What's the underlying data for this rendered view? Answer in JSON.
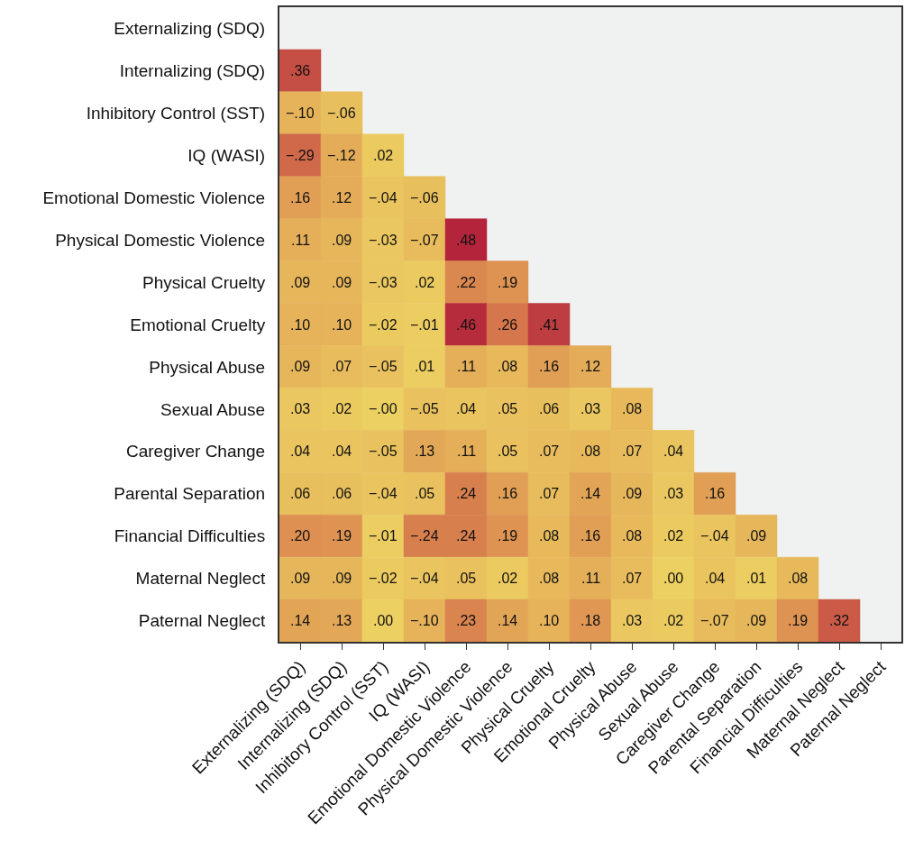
{
  "chart_data": {
    "type": "heatmap",
    "categories": [
      "Externalizing (SDQ)",
      "Internalizing (SDQ)",
      "Inhibitory Control (SST)",
      "IQ (WASI)",
      "Emotional Domestic Violence",
      "Physical Domestic Violence",
      "Physical Cruelty",
      "Emotional Cruelty",
      "Physical Abuse",
      "Sexual Abuse",
      "Caregiver Change",
      "Parental Separation",
      "Financial Difficulties",
      "Maternal Neglect",
      "Paternal Neglect"
    ],
    "y_categories": [
      "Externalizing (SDQ)",
      "Internalizing (SDQ)",
      "Inhibitory Control (SST)",
      "IQ (WASI)",
      "Emotional Domestic Violence",
      "Physical Domestic Violence",
      "Physical Cruelty",
      "Emotional Cruelty",
      "Physical Abuse",
      "Sexual Abuse",
      "Caregiver Change",
      "Parental Separation",
      "Financial Difficulties",
      "Maternal Neglect",
      "Paternal Neglect"
    ],
    "cells": [
      [
        null,
        null,
        null,
        null,
        null,
        null,
        null,
        null,
        null,
        null,
        null,
        null,
        null,
        null,
        null
      ],
      [
        0.36,
        null,
        null,
        null,
        null,
        null,
        null,
        null,
        null,
        null,
        null,
        null,
        null,
        null,
        null
      ],
      [
        -0.1,
        -0.06,
        null,
        null,
        null,
        null,
        null,
        null,
        null,
        null,
        null,
        null,
        null,
        null,
        null
      ],
      [
        -0.29,
        -0.12,
        0.02,
        null,
        null,
        null,
        null,
        null,
        null,
        null,
        null,
        null,
        null,
        null,
        null
      ],
      [
        0.16,
        0.12,
        -0.04,
        -0.06,
        null,
        null,
        null,
        null,
        null,
        null,
        null,
        null,
        null,
        null,
        null
      ],
      [
        0.11,
        0.09,
        -0.03,
        -0.07,
        0.48,
        null,
        null,
        null,
        null,
        null,
        null,
        null,
        null,
        null,
        null
      ],
      [
        0.09,
        0.09,
        -0.03,
        0.02,
        0.22,
        0.19,
        null,
        null,
        null,
        null,
        null,
        null,
        null,
        null,
        null
      ],
      [
        0.1,
        0.1,
        -0.02,
        -0.01,
        0.46,
        0.26,
        0.41,
        null,
        null,
        null,
        null,
        null,
        null,
        null,
        null
      ],
      [
        0.09,
        0.07,
        -0.05,
        0.01,
        0.11,
        0.08,
        0.16,
        0.12,
        null,
        null,
        null,
        null,
        null,
        null,
        null
      ],
      [
        0.03,
        0.02,
        0,
        -0.05,
        0.04,
        0.05,
        0.06,
        0.03,
        0.08,
        null,
        null,
        null,
        null,
        null,
        null
      ],
      [
        0.04,
        0.04,
        -0.05,
        0.13,
        0.11,
        0.05,
        0.07,
        0.08,
        0.07,
        0.04,
        null,
        null,
        null,
        null,
        null
      ],
      [
        0.06,
        0.06,
        -0.04,
        0.05,
        0.24,
        0.16,
        0.07,
        0.14,
        0.09,
        0.03,
        0.16,
        null,
        null,
        null,
        null
      ],
      [
        0.2,
        0.19,
        -0.01,
        -0.24,
        0.24,
        0.19,
        0.08,
        0.16,
        0.08,
        0.02,
        -0.04,
        0.09,
        null,
        null,
        null
      ],
      [
        0.09,
        0.09,
        -0.02,
        -0.04,
        0.05,
        0.02,
        0.08,
        0.11,
        0.07,
        0,
        0.04,
        0.01,
        0.08,
        null,
        null
      ],
      [
        0.14,
        0.13,
        0,
        -0.1,
        0.23,
        0.14,
        0.1,
        0.18,
        0.03,
        0.02,
        -0.07,
        0.09,
        0.19,
        0.32,
        null
      ]
    ],
    "cell_labels": [
      [
        null,
        null,
        null,
        null,
        null,
        null,
        null,
        null,
        null,
        null,
        null,
        null,
        null,
        null,
        null
      ],
      [
        ".36",
        null,
        null,
        null,
        null,
        null,
        null,
        null,
        null,
        null,
        null,
        null,
        null,
        null,
        null
      ],
      [
        "−.10",
        "−.06",
        null,
        null,
        null,
        null,
        null,
        null,
        null,
        null,
        null,
        null,
        null,
        null,
        null
      ],
      [
        "−.29",
        "−.12",
        ".02",
        null,
        null,
        null,
        null,
        null,
        null,
        null,
        null,
        null,
        null,
        null,
        null
      ],
      [
        ".16",
        ".12",
        "−.04",
        "−.06",
        null,
        null,
        null,
        null,
        null,
        null,
        null,
        null,
        null,
        null,
        null
      ],
      [
        ".11",
        ".09",
        "−.03",
        "−.07",
        ".48",
        null,
        null,
        null,
        null,
        null,
        null,
        null,
        null,
        null,
        null
      ],
      [
        ".09",
        ".09",
        "−.03",
        ".02",
        ".22",
        ".19",
        null,
        null,
        null,
        null,
        null,
        null,
        null,
        null,
        null
      ],
      [
        ".10",
        ".10",
        "−.02",
        "−.01",
        ".46",
        ".26",
        ".41",
        null,
        null,
        null,
        null,
        null,
        null,
        null,
        null
      ],
      [
        ".09",
        ".07",
        "−.05",
        ".01",
        ".11",
        ".08",
        ".16",
        ".12",
        null,
        null,
        null,
        null,
        null,
        null,
        null
      ],
      [
        ".03",
        ".02",
        "−.00",
        "−.05",
        ".04",
        ".05",
        ".06",
        ".03",
        ".08",
        null,
        null,
        null,
        null,
        null,
        null
      ],
      [
        ".04",
        ".04",
        "−.05",
        ".13",
        ".11",
        ".05",
        ".07",
        ".08",
        ".07",
        ".04",
        null,
        null,
        null,
        null,
        null
      ],
      [
        ".06",
        ".06",
        "−.04",
        ".05",
        ".24",
        ".16",
        ".07",
        ".14",
        ".09",
        ".03",
        ".16",
        null,
        null,
        null,
        null
      ],
      [
        ".20",
        ".19",
        "−.01",
        "−.24",
        ".24",
        ".19",
        ".08",
        ".16",
        ".08",
        ".02",
        "−.04",
        ".09",
        null,
        null,
        null
      ],
      [
        ".09",
        ".09",
        "−.02",
        "−.04",
        ".05",
        ".02",
        ".08",
        ".11",
        ".07",
        ".00",
        ".04",
        ".01",
        ".08",
        null,
        null
      ],
      [
        ".14",
        ".13",
        ".00",
        "−.10",
        ".23",
        ".14",
        ".10",
        ".18",
        ".03",
        ".02",
        "−.07",
        ".09",
        ".19",
        ".32",
        null
      ]
    ]
  }
}
